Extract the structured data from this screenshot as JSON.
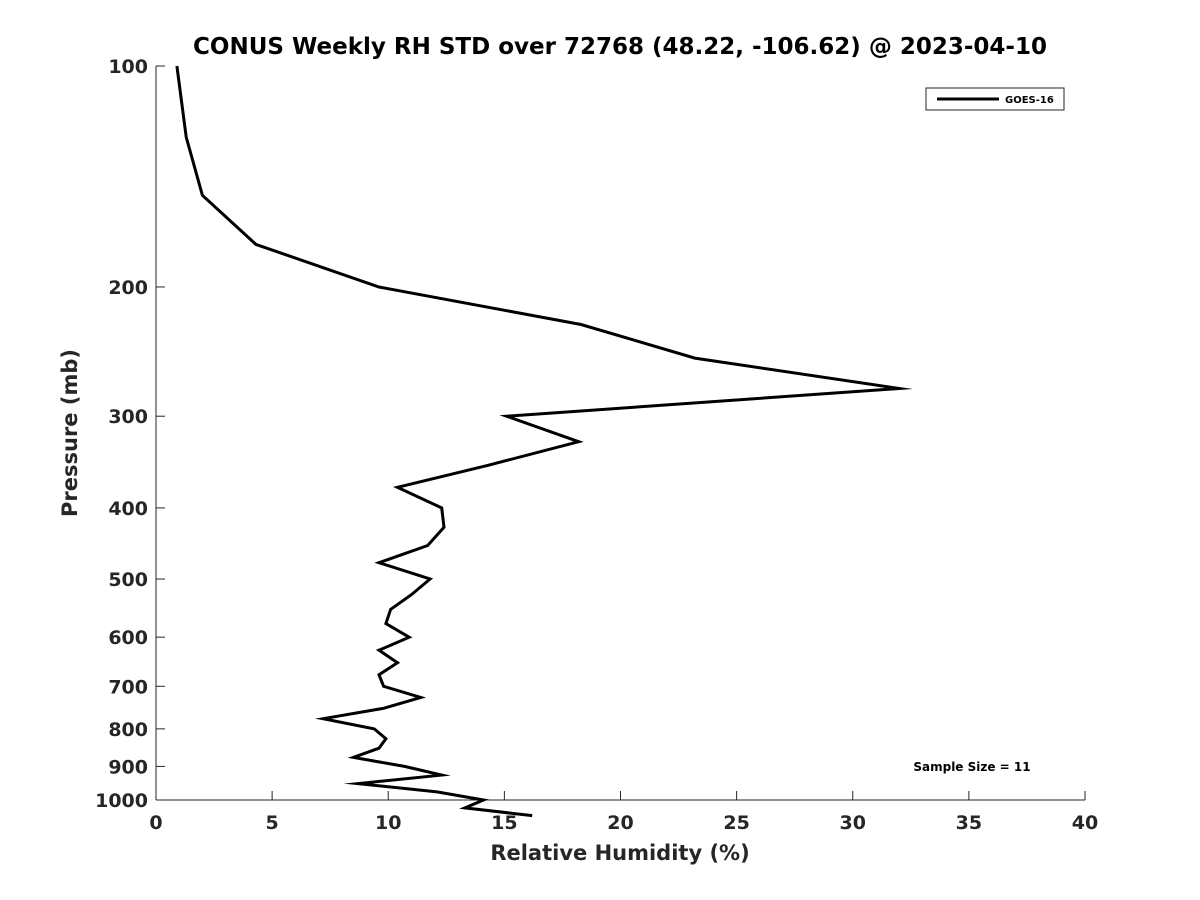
{
  "chart_data": {
    "type": "line",
    "title": "CONUS Weekly RH STD over 72768 (48.22, -106.62) @ 2023-04-10",
    "xlabel": "Relative Humidity (%)",
    "ylabel": "Pressure (mb)",
    "xlim": [
      0,
      40
    ],
    "ylim": [
      100,
      1000
    ],
    "y_scale": "log",
    "y_reversed": true,
    "x_ticks": [
      "0",
      "5",
      "10",
      "15",
      "20",
      "25",
      "30",
      "35",
      "40"
    ],
    "y_ticks": [
      "100",
      "200",
      "300",
      "400",
      "500",
      "600",
      "700",
      "800",
      "900",
      "1000"
    ],
    "grid": false,
    "legend_position": "top-right",
    "annotation": "Sample Size = 11",
    "series": [
      {
        "name": "GOES-16",
        "color": "#000000",
        "points": [
          [
            0.9,
            100
          ],
          [
            1.3,
            125
          ],
          [
            2.0,
            150
          ],
          [
            4.3,
            175
          ],
          [
            9.6,
            200
          ],
          [
            18.3,
            225
          ],
          [
            23.2,
            250
          ],
          [
            32.0,
            275
          ],
          [
            15.1,
            300
          ],
          [
            18.2,
            325
          ],
          [
            14.3,
            350
          ],
          [
            10.4,
            375
          ],
          [
            12.3,
            400
          ],
          [
            12.4,
            425
          ],
          [
            11.7,
            450
          ],
          [
            9.6,
            475
          ],
          [
            11.8,
            500
          ],
          [
            11.0,
            525
          ],
          [
            10.1,
            550
          ],
          [
            9.9,
            575
          ],
          [
            10.9,
            600
          ],
          [
            9.6,
            625
          ],
          [
            10.4,
            650
          ],
          [
            9.6,
            675
          ],
          [
            9.8,
            700
          ],
          [
            11.4,
            725
          ],
          [
            9.8,
            750
          ],
          [
            7.2,
            775
          ],
          [
            9.4,
            800
          ],
          [
            9.9,
            825
          ],
          [
            9.6,
            850
          ],
          [
            8.5,
            875
          ],
          [
            10.7,
            900
          ],
          [
            12.3,
            925
          ],
          [
            8.7,
            950
          ],
          [
            12.1,
            975
          ],
          [
            14.1,
            1000
          ],
          [
            13.3,
            1025
          ],
          [
            16.2,
            1050
          ]
        ]
      }
    ]
  }
}
